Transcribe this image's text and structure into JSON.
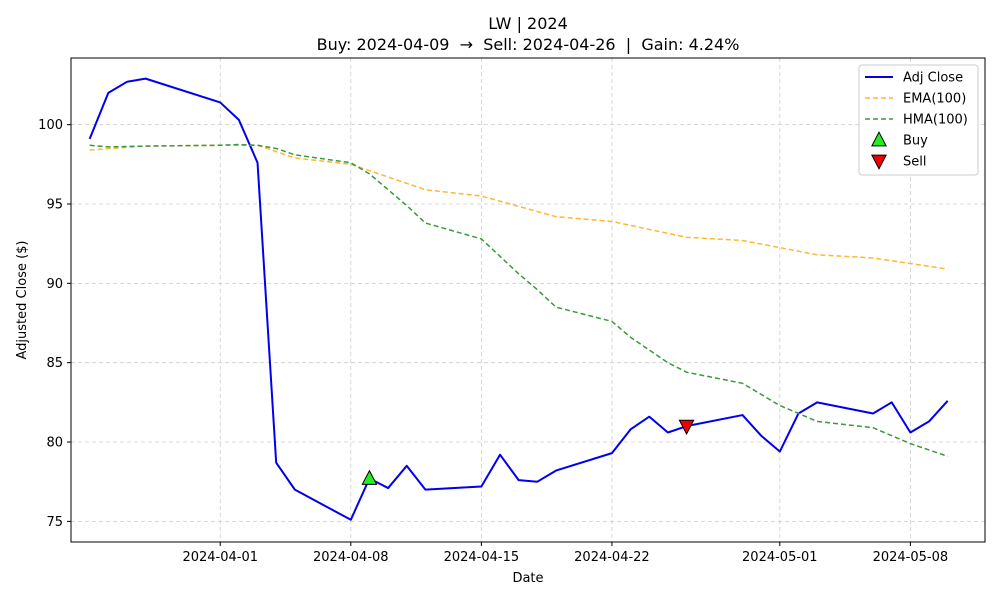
{
  "chart_data": {
    "type": "line",
    "title": "LW | 2024",
    "subtitle": "Buy: 2024-04-09  →  Sell: 2024-04-26  |  Gain: 4.24%",
    "xlabel": "Date",
    "ylabel": "Adjusted Close ($)",
    "xlim": [
      "2024-03-24",
      "2024-05-12"
    ],
    "ylim": [
      73.7,
      104.2
    ],
    "x_ticks": [
      "2024-04-01",
      "2024-04-08",
      "2024-04-15",
      "2024-04-22",
      "2024-05-01",
      "2024-05-08"
    ],
    "y_ticks": [
      75,
      80,
      85,
      90,
      95,
      100
    ],
    "grid": true,
    "legend_position": "top-right",
    "series": [
      {
        "name": "Adj Close",
        "color": "#0000ee",
        "style": "solid",
        "points": [
          [
            "2024-03-25",
            99.1
          ],
          [
            "2024-03-26",
            102.0
          ],
          [
            "2024-03-27",
            102.7
          ],
          [
            "2024-03-28",
            102.9
          ],
          [
            "2024-04-01",
            101.4
          ],
          [
            "2024-04-02",
            100.3
          ],
          [
            "2024-04-03",
            97.6
          ],
          [
            "2024-04-04",
            78.7
          ],
          [
            "2024-04-05",
            77.0
          ],
          [
            "2024-04-08",
            75.1
          ],
          [
            "2024-04-09",
            77.7
          ],
          [
            "2024-04-10",
            77.1
          ],
          [
            "2024-04-11",
            78.5
          ],
          [
            "2024-04-12",
            77.0
          ],
          [
            "2024-04-15",
            77.2
          ],
          [
            "2024-04-16",
            79.2
          ],
          [
            "2024-04-17",
            77.6
          ],
          [
            "2024-04-18",
            77.5
          ],
          [
            "2024-04-19",
            78.2
          ],
          [
            "2024-04-22",
            79.3
          ],
          [
            "2024-04-23",
            80.8
          ],
          [
            "2024-04-24",
            81.6
          ],
          [
            "2024-04-25",
            80.6
          ],
          [
            "2024-04-26",
            81.0
          ],
          [
            "2024-04-29",
            81.7
          ],
          [
            "2024-04-30",
            80.4
          ],
          [
            "2024-05-01",
            79.4
          ],
          [
            "2024-05-02",
            81.8
          ],
          [
            "2024-05-03",
            82.5
          ],
          [
            "2024-05-06",
            81.8
          ],
          [
            "2024-05-07",
            82.5
          ],
          [
            "2024-05-08",
            80.6
          ],
          [
            "2024-05-09",
            81.3
          ],
          [
            "2024-05-10",
            82.6
          ]
        ]
      },
      {
        "name": "EMA(100)",
        "color": "#ffb732",
        "style": "dashed",
        "points": [
          [
            "2024-03-25",
            98.4
          ],
          [
            "2024-03-28",
            98.65
          ],
          [
            "2024-04-01",
            98.7
          ],
          [
            "2024-04-03",
            98.7
          ],
          [
            "2024-04-04",
            98.3
          ],
          [
            "2024-04-05",
            97.9
          ],
          [
            "2024-04-08",
            97.5
          ],
          [
            "2024-04-12",
            95.9
          ],
          [
            "2024-04-15",
            95.5
          ],
          [
            "2024-04-19",
            94.2
          ],
          [
            "2024-04-22",
            93.9
          ],
          [
            "2024-04-26",
            92.9
          ],
          [
            "2024-04-29",
            92.7
          ],
          [
            "2024-05-03",
            91.8
          ],
          [
            "2024-05-06",
            91.6
          ],
          [
            "2024-05-10",
            90.9
          ]
        ]
      },
      {
        "name": "HMA(100)",
        "color": "#3a9a3a",
        "style": "dashed",
        "points": [
          [
            "2024-03-25",
            98.7
          ],
          [
            "2024-03-26",
            98.6
          ],
          [
            "2024-03-28",
            98.65
          ],
          [
            "2024-04-01",
            98.7
          ],
          [
            "2024-04-02",
            98.75
          ],
          [
            "2024-04-03",
            98.7
          ],
          [
            "2024-04-04",
            98.5
          ],
          [
            "2024-04-05",
            98.1
          ],
          [
            "2024-04-08",
            97.6
          ],
          [
            "2024-04-09",
            96.9
          ],
          [
            "2024-04-10",
            95.9
          ],
          [
            "2024-04-11",
            94.9
          ],
          [
            "2024-04-12",
            93.8
          ],
          [
            "2024-04-15",
            92.8
          ],
          [
            "2024-04-16",
            91.7
          ],
          [
            "2024-04-17",
            90.6
          ],
          [
            "2024-04-18",
            89.6
          ],
          [
            "2024-04-19",
            88.5
          ],
          [
            "2024-04-22",
            87.6
          ],
          [
            "2024-04-23",
            86.6
          ],
          [
            "2024-04-24",
            85.8
          ],
          [
            "2024-04-25",
            85.0
          ],
          [
            "2024-04-26",
            84.4
          ],
          [
            "2024-04-29",
            83.7
          ],
          [
            "2024-04-30",
            83.0
          ],
          [
            "2024-05-01",
            82.3
          ],
          [
            "2024-05-02",
            81.8
          ],
          [
            "2024-05-03",
            81.3
          ],
          [
            "2024-05-06",
            80.9
          ],
          [
            "2024-05-07",
            80.4
          ],
          [
            "2024-05-08",
            79.9
          ],
          [
            "2024-05-09",
            79.5
          ],
          [
            "2024-05-10",
            79.1
          ]
        ]
      }
    ],
    "markers": [
      {
        "name": "Buy",
        "date": "2024-04-09",
        "value": 77.7,
        "shape": "triangle-up",
        "color": "#22ee22"
      },
      {
        "name": "Sell",
        "date": "2024-04-26",
        "value": 81.0,
        "shape": "triangle-down",
        "color": "#ee0000"
      }
    ]
  }
}
